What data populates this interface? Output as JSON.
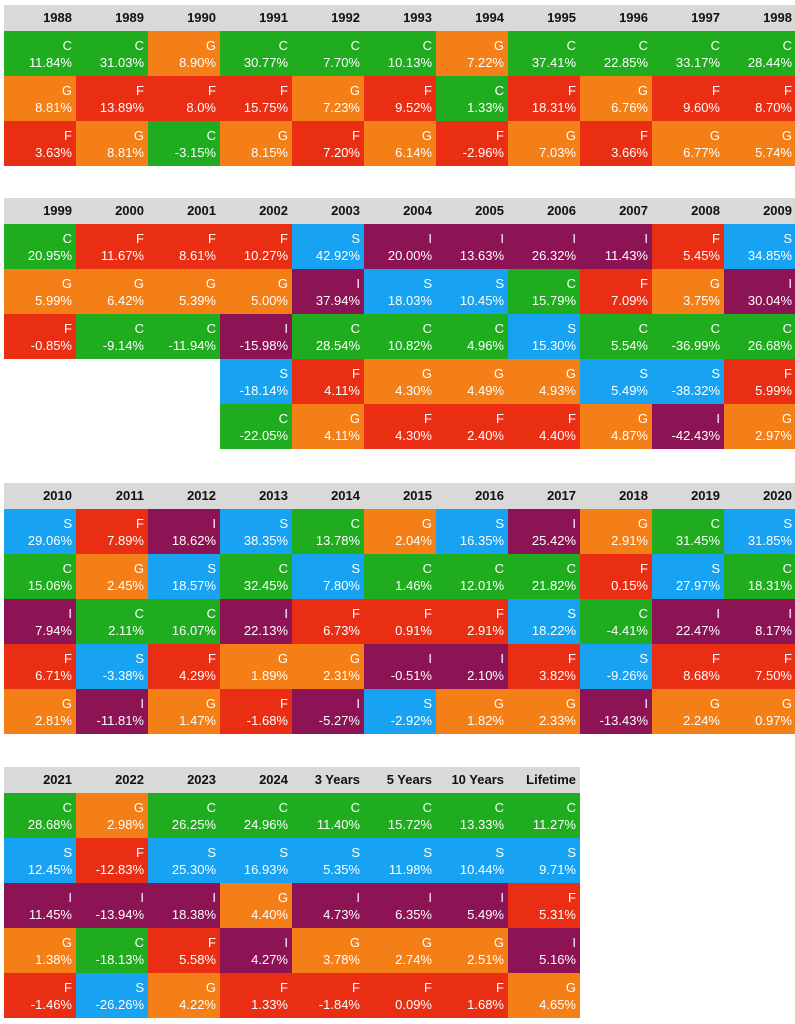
{
  "colors": {
    "C": "#1fad1f",
    "G": "#f57f17",
    "F": "#ea2e14",
    "S": "#17a3f2",
    "I": "#8c1454"
  },
  "chart_data": {
    "type": "table",
    "tables": [
      {
        "columns": [
          {
            "label": "1988",
            "cells": [
              {
                "k": "C",
                "v": "11.84%"
              },
              {
                "k": "G",
                "v": "8.81%"
              },
              {
                "k": "F",
                "v": "3.63%"
              }
            ]
          },
          {
            "label": "1989",
            "cells": [
              {
                "k": "C",
                "v": "31.03%"
              },
              {
                "k": "F",
                "v": "13.89%"
              },
              {
                "k": "G",
                "v": "8.81%"
              }
            ]
          },
          {
            "label": "1990",
            "cells": [
              {
                "k": "G",
                "v": "8.90%"
              },
              {
                "k": "F",
                "v": "8.0%"
              },
              {
                "k": "C",
                "v": "-3.15%"
              }
            ]
          },
          {
            "label": "1991",
            "cells": [
              {
                "k": "C",
                "v": "30.77%"
              },
              {
                "k": "F",
                "v": "15.75%"
              },
              {
                "k": "G",
                "v": "8.15%"
              }
            ]
          },
          {
            "label": "1992",
            "cells": [
              {
                "k": "C",
                "v": "7.70%"
              },
              {
                "k": "G",
                "v": "7.23%"
              },
              {
                "k": "F",
                "v": "7.20%"
              }
            ]
          },
          {
            "label": "1993",
            "cells": [
              {
                "k": "C",
                "v": "10.13%"
              },
              {
                "k": "F",
                "v": "9.52%"
              },
              {
                "k": "G",
                "v": "6.14%"
              }
            ]
          },
          {
            "label": "1994",
            "cells": [
              {
                "k": "G",
                "v": "7.22%"
              },
              {
                "k": "C",
                "v": "1.33%"
              },
              {
                "k": "F",
                "v": "-2.96%"
              }
            ]
          },
          {
            "label": "1995",
            "cells": [
              {
                "k": "C",
                "v": "37.41%"
              },
              {
                "k": "F",
                "v": "18.31%"
              },
              {
                "k": "G",
                "v": "7.03%"
              }
            ]
          },
          {
            "label": "1996",
            "cells": [
              {
                "k": "C",
                "v": "22.85%"
              },
              {
                "k": "G",
                "v": "6.76%"
              },
              {
                "k": "F",
                "v": "3.66%"
              }
            ]
          },
          {
            "label": "1997",
            "cells": [
              {
                "k": "C",
                "v": "33.17%"
              },
              {
                "k": "F",
                "v": "9.60%"
              },
              {
                "k": "G",
                "v": "6.77%"
              }
            ]
          },
          {
            "label": "1998",
            "cells": [
              {
                "k": "C",
                "v": "28.44%"
              },
              {
                "k": "F",
                "v": "8.70%"
              },
              {
                "k": "G",
                "v": "5.74%"
              }
            ]
          }
        ]
      },
      {
        "columns": [
          {
            "label": "1999",
            "cells": [
              {
                "k": "C",
                "v": "20.95%"
              },
              {
                "k": "G",
                "v": "5.99%"
              },
              {
                "k": "F",
                "v": "-0.85%"
              }
            ]
          },
          {
            "label": "2000",
            "cells": [
              {
                "k": "F",
                "v": "11.67%"
              },
              {
                "k": "G",
                "v": "6.42%"
              },
              {
                "k": "C",
                "v": "-9.14%"
              }
            ]
          },
          {
            "label": "2001",
            "cells": [
              {
                "k": "F",
                "v": "8.61%"
              },
              {
                "k": "G",
                "v": "5.39%"
              },
              {
                "k": "C",
                "v": "-11.94%"
              }
            ]
          },
          {
            "label": "2002",
            "cells": [
              {
                "k": "F",
                "v": "10.27%"
              },
              {
                "k": "G",
                "v": "5.00%"
              },
              {
                "k": "I",
                "v": "-15.98%"
              },
              {
                "k": "S",
                "v": "-18.14%"
              },
              {
                "k": "C",
                "v": "-22.05%"
              }
            ]
          },
          {
            "label": "2003",
            "cells": [
              {
                "k": "S",
                "v": "42.92%"
              },
              {
                "k": "I",
                "v": "37.94%"
              },
              {
                "k": "C",
                "v": "28.54%"
              },
              {
                "k": "F",
                "v": "4.11%"
              },
              {
                "k": "G",
                "v": "4.11%"
              }
            ]
          },
          {
            "label": "2004",
            "cells": [
              {
                "k": "I",
                "v": "20.00%"
              },
              {
                "k": "S",
                "v": "18.03%"
              },
              {
                "k": "C",
                "v": "10.82%"
              },
              {
                "k": "G",
                "v": "4.30%"
              },
              {
                "k": "F",
                "v": "4.30%"
              }
            ]
          },
          {
            "label": "2005",
            "cells": [
              {
                "k": "I",
                "v": "13.63%"
              },
              {
                "k": "S",
                "v": "10.45%"
              },
              {
                "k": "C",
                "v": "4.96%"
              },
              {
                "k": "G",
                "v": "4.49%"
              },
              {
                "k": "F",
                "v": "2.40%"
              }
            ]
          },
          {
            "label": "2006",
            "cells": [
              {
                "k": "I",
                "v": "26.32%"
              },
              {
                "k": "C",
                "v": "15.79%"
              },
              {
                "k": "S",
                "v": "15.30%"
              },
              {
                "k": "G",
                "v": "4.93%"
              },
              {
                "k": "F",
                "v": "4.40%"
              }
            ]
          },
          {
            "label": "2007",
            "cells": [
              {
                "k": "I",
                "v": "11.43%"
              },
              {
                "k": "F",
                "v": "7.09%"
              },
              {
                "k": "C",
                "v": "5.54%"
              },
              {
                "k": "S",
                "v": "5.49%"
              },
              {
                "k": "G",
                "v": "4.87%"
              }
            ]
          },
          {
            "label": "2008",
            "cells": [
              {
                "k": "F",
                "v": "5.45%"
              },
              {
                "k": "G",
                "v": "3.75%"
              },
              {
                "k": "C",
                "v": "-36.99%"
              },
              {
                "k": "S",
                "v": "-38.32%"
              },
              {
                "k": "I",
                "v": "-42.43%"
              }
            ]
          },
          {
            "label": "2009",
            "cells": [
              {
                "k": "S",
                "v": "34.85%"
              },
              {
                "k": "I",
                "v": "30.04%"
              },
              {
                "k": "C",
                "v": "26.68%"
              },
              {
                "k": "F",
                "v": "5.99%"
              },
              {
                "k": "G",
                "v": "2.97%"
              }
            ]
          }
        ]
      },
      {
        "columns": [
          {
            "label": "2010",
            "cells": [
              {
                "k": "S",
                "v": "29.06%"
              },
              {
                "k": "C",
                "v": "15.06%"
              },
              {
                "k": "I",
                "v": "7.94%"
              },
              {
                "k": "F",
                "v": "6.71%"
              },
              {
                "k": "G",
                "v": "2.81%"
              }
            ]
          },
          {
            "label": "2011",
            "cells": [
              {
                "k": "F",
                "v": "7.89%"
              },
              {
                "k": "G",
                "v": "2.45%"
              },
              {
                "k": "C",
                "v": "2.11%"
              },
              {
                "k": "S",
                "v": "-3.38%"
              },
              {
                "k": "I",
                "v": "-11.81%"
              }
            ]
          },
          {
            "label": "2012",
            "cells": [
              {
                "k": "I",
                "v": "18.62%"
              },
              {
                "k": "S",
                "v": "18.57%"
              },
              {
                "k": "C",
                "v": "16.07%"
              },
              {
                "k": "F",
                "v": "4.29%"
              },
              {
                "k": "G",
                "v": "1.47%"
              }
            ]
          },
          {
            "label": "2013",
            "cells": [
              {
                "k": "S",
                "v": "38.35%"
              },
              {
                "k": "C",
                "v": "32.45%"
              },
              {
                "k": "I",
                "v": "22.13%"
              },
              {
                "k": "G",
                "v": "1.89%"
              },
              {
                "k": "F",
                "v": "-1.68%"
              }
            ]
          },
          {
            "label": "2014",
            "cells": [
              {
                "k": "C",
                "v": "13.78%"
              },
              {
                "k": "S",
                "v": "7.80%"
              },
              {
                "k": "F",
                "v": "6.73%"
              },
              {
                "k": "G",
                "v": "2.31%"
              },
              {
                "k": "I",
                "v": "-5.27%"
              }
            ]
          },
          {
            "label": "2015",
            "cells": [
              {
                "k": "G",
                "v": "2.04%"
              },
              {
                "k": "C",
                "v": "1.46%"
              },
              {
                "k": "F",
                "v": "0.91%"
              },
              {
                "k": "I",
                "v": "-0.51%"
              },
              {
                "k": "S",
                "v": "-2.92%"
              }
            ]
          },
          {
            "label": "2016",
            "cells": [
              {
                "k": "S",
                "v": "16.35%"
              },
              {
                "k": "C",
                "v": "12.01%"
              },
              {
                "k": "F",
                "v": "2.91%"
              },
              {
                "k": "I",
                "v": "2.10%"
              },
              {
                "k": "G",
                "v": "1.82%"
              }
            ]
          },
          {
            "label": "2017",
            "cells": [
              {
                "k": "I",
                "v": "25.42%"
              },
              {
                "k": "C",
                "v": "21.82%"
              },
              {
                "k": "S",
                "v": "18.22%"
              },
              {
                "k": "F",
                "v": "3.82%"
              },
              {
                "k": "G",
                "v": "2.33%"
              }
            ]
          },
          {
            "label": "2018",
            "cells": [
              {
                "k": "G",
                "v": "2.91%"
              },
              {
                "k": "F",
                "v": "0.15%"
              },
              {
                "k": "C",
                "v": "-4.41%"
              },
              {
                "k": "S",
                "v": "-9.26%"
              },
              {
                "k": "I",
                "v": "-13.43%"
              }
            ]
          },
          {
            "label": "2019",
            "cells": [
              {
                "k": "C",
                "v": "31.45%"
              },
              {
                "k": "S",
                "v": "27.97%"
              },
              {
                "k": "I",
                "v": "22.47%"
              },
              {
                "k": "F",
                "v": "8.68%"
              },
              {
                "k": "G",
                "v": "2.24%"
              }
            ]
          },
          {
            "label": "2020",
            "cells": [
              {
                "k": "S",
                "v": "31.85%"
              },
              {
                "k": "C",
                "v": "18.31%"
              },
              {
                "k": "I",
                "v": "8.17%"
              },
              {
                "k": "F",
                "v": "7.50%"
              },
              {
                "k": "G",
                "v": "0.97%"
              }
            ]
          }
        ]
      },
      {
        "columns": [
          {
            "label": "2021",
            "cells": [
              {
                "k": "C",
                "v": "28.68%"
              },
              {
                "k": "S",
                "v": "12.45%"
              },
              {
                "k": "I",
                "v": "11.45%"
              },
              {
                "k": "G",
                "v": "1.38%"
              },
              {
                "k": "F",
                "v": "-1.46%"
              }
            ]
          },
          {
            "label": "2022",
            "cells": [
              {
                "k": "G",
                "v": "2.98%"
              },
              {
                "k": "F",
                "v": "-12.83%"
              },
              {
                "k": "I",
                "v": "-13.94%"
              },
              {
                "k": "C",
                "v": "-18.13%"
              },
              {
                "k": "S",
                "v": "-26.26%"
              }
            ]
          },
          {
            "label": "2023",
            "cells": [
              {
                "k": "C",
                "v": "26.25%"
              },
              {
                "k": "S",
                "v": "25.30%"
              },
              {
                "k": "I",
                "v": "18.38%"
              },
              {
                "k": "F",
                "v": "5.58%"
              },
              {
                "k": "G",
                "v": "4.22%"
              }
            ]
          },
          {
            "label": "2024",
            "cells": [
              {
                "k": "C",
                "v": "24.96%"
              },
              {
                "k": "S",
                "v": "16.93%"
              },
              {
                "k": "G",
                "v": "4.40%"
              },
              {
                "k": "I",
                "v": "4.27%"
              },
              {
                "k": "F",
                "v": "1.33%"
              }
            ]
          },
          {
            "label": "3 Years",
            "cells": [
              {
                "k": "C",
                "v": "11.40%"
              },
              {
                "k": "S",
                "v": "5.35%"
              },
              {
                "k": "I",
                "v": "4.73%"
              },
              {
                "k": "G",
                "v": "3.78%"
              },
              {
                "k": "F",
                "v": "-1.84%"
              }
            ]
          },
          {
            "label": "5 Years",
            "cells": [
              {
                "k": "C",
                "v": "15.72%"
              },
              {
                "k": "S",
                "v": "11.98%"
              },
              {
                "k": "I",
                "v": "6.35%"
              },
              {
                "k": "G",
                "v": "2.74%"
              },
              {
                "k": "F",
                "v": "0.09%"
              }
            ]
          },
          {
            "label": "10 Years",
            "cells": [
              {
                "k": "C",
                "v": "13.33%"
              },
              {
                "k": "S",
                "v": "10.44%"
              },
              {
                "k": "I",
                "v": "5.49%"
              },
              {
                "k": "G",
                "v": "2.51%"
              },
              {
                "k": "F",
                "v": "1.68%"
              }
            ]
          },
          {
            "label": "Lifetime",
            "cells": [
              {
                "k": "C",
                "v": "11.27%"
              },
              {
                "k": "S",
                "v": "9.71%"
              },
              {
                "k": "F",
                "v": "5.31%"
              },
              {
                "k": "I",
                "v": "5.16%"
              },
              {
                "k": "G",
                "v": "4.65%"
              }
            ]
          }
        ]
      }
    ]
  }
}
